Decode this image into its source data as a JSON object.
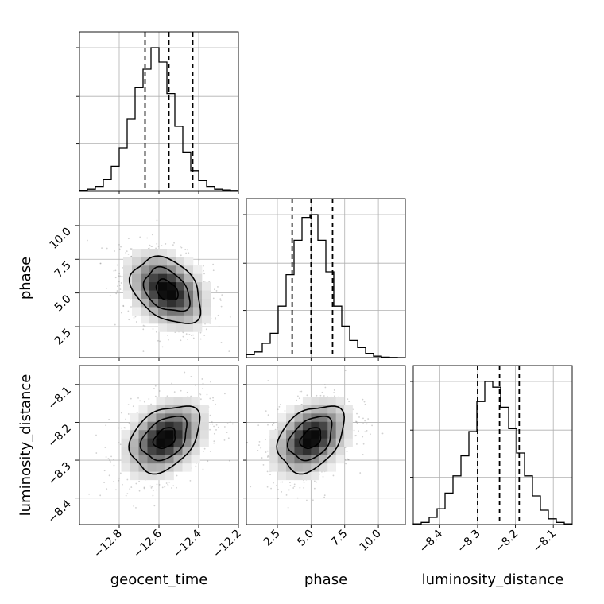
{
  "chart_data": {
    "type": "corner",
    "parameters": [
      "geocent_time",
      "phase",
      "luminosity_distance"
    ],
    "axis_labels": {
      "x": [
        "geocent_time",
        "phase",
        "luminosity_distance"
      ],
      "y": [
        "phase",
        "luminosity_distance"
      ]
    },
    "ranges": {
      "geocent_time": [
        -13.0,
        -12.2
      ],
      "phase": [
        0.2,
        12.0
      ],
      "luminosity_distance": [
        -8.47,
        -8.05
      ]
    },
    "ticks": {
      "geocent_time": {
        "values": [
          -12.8,
          -12.6,
          -12.4,
          -12.2
        ],
        "labels": [
          "−12.8",
          "−12.6",
          "−12.4",
          "−12.2"
        ]
      },
      "phase": {
        "values": [
          2.5,
          5.0,
          7.5,
          10.0
        ],
        "labels": [
          "2.5",
          "5.0",
          "7.5",
          "10.0"
        ]
      },
      "luminosity_distance": {
        "values": [
          -8.4,
          -8.3,
          -8.2,
          -8.1
        ],
        "labels": [
          "−8.4",
          "−8.3",
          "−8.2",
          "−8.1"
        ]
      }
    },
    "grid": true,
    "histograms": {
      "geocent_time": {
        "bin_start": -13.0,
        "bin_width": 0.04,
        "counts": [
          0.2,
          1,
          3,
          8,
          17,
          30,
          50,
          72,
          85,
          100,
          90,
          68,
          45,
          27,
          14,
          7,
          3,
          1,
          0.5,
          0.1
        ],
        "quantiles": [
          -12.67,
          -12.55,
          -12.43
        ]
      },
      "phase": {
        "bin_start": 0.2,
        "bin_width": 0.59,
        "counts": [
          2,
          4,
          10,
          17,
          36,
          58,
          82,
          98,
          100,
          82,
          60,
          36,
          22,
          12,
          7,
          3,
          1,
          0.3,
          0.1,
          0
        ],
        "quantiles": [
          3.6,
          5.0,
          6.6
        ]
      },
      "luminosity_distance": {
        "bin_start": -8.47,
        "bin_width": 0.021,
        "counts": [
          0.5,
          1.5,
          5,
          11,
          22,
          34,
          48,
          65,
          86,
          100,
          96,
          82,
          67,
          50,
          34,
          20,
          10,
          4,
          1.5,
          0.5
        ],
        "quantiles": [
          -8.3,
          -8.242,
          -8.19
        ]
      }
    },
    "pairs": [
      {
        "x": "geocent_time",
        "y": "phase",
        "center": [
          -12.56,
          5.2
        ],
        "sigma": [
          0.1,
          1.4
        ],
        "rho": -0.35
      },
      {
        "x": "geocent_time",
        "y": "luminosity_distance",
        "center": [
          -12.57,
          -8.242
        ],
        "sigma": [
          0.1,
          0.05
        ],
        "rho": 0.35
      },
      {
        "x": "phase",
        "y": "luminosity_distance",
        "center": [
          5.0,
          -8.242
        ],
        "sigma": [
          1.4,
          0.05
        ],
        "rho": 0.35
      }
    ]
  }
}
